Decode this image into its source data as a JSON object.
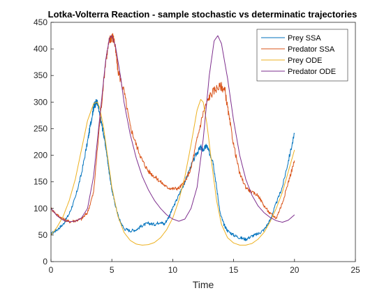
{
  "chart_data": {
    "type": "line",
    "title": "Lotka-Volterra Reaction - sample stochastic vs determinatic trajectories",
    "xlabel": "Time",
    "ylabel": "",
    "xlim": [
      0,
      25
    ],
    "ylim": [
      0,
      450
    ],
    "xticks": [
      0,
      5,
      10,
      15,
      20,
      25
    ],
    "yticks": [
      0,
      50,
      100,
      150,
      200,
      250,
      300,
      350,
      400,
      450
    ],
    "grid": false,
    "legend_position": "top-right",
    "series": [
      {
        "name": "Prey SSA",
        "color": "#0072BD",
        "stochastic": true,
        "points": [
          [
            0,
            52
          ],
          [
            0.5,
            60
          ],
          [
            1,
            70
          ],
          [
            1.5,
            90
          ],
          [
            2,
            120
          ],
          [
            2.5,
            165
          ],
          [
            3,
            225
          ],
          [
            3.3,
            265
          ],
          [
            3.5,
            290
          ],
          [
            3.6,
            296
          ],
          [
            3.8,
            300
          ],
          [
            4,
            275
          ],
          [
            4.2,
            255
          ],
          [
            4.4,
            230
          ],
          [
            4.6,
            200
          ],
          [
            4.8,
            165
          ],
          [
            5,
            135
          ],
          [
            5.3,
            105
          ],
          [
            5.6,
            80
          ],
          [
            6,
            62
          ],
          [
            6.5,
            58
          ],
          [
            7,
            60
          ],
          [
            7.5,
            68
          ],
          [
            8,
            72
          ],
          [
            8.5,
            70
          ],
          [
            9,
            75
          ],
          [
            9.3,
            70
          ],
          [
            9.7,
            85
          ],
          [
            10,
            100
          ],
          [
            10.5,
            125
          ],
          [
            11,
            150
          ],
          [
            11.5,
            180
          ],
          [
            12,
            205
          ],
          [
            12.3,
            215
          ],
          [
            12.5,
            210
          ],
          [
            12.8,
            218
          ],
          [
            13,
            205
          ],
          [
            13.3,
            190
          ],
          [
            13.6,
            140
          ],
          [
            13.9,
            90
          ],
          [
            14.2,
            70
          ],
          [
            14.5,
            58
          ],
          [
            15,
            50
          ],
          [
            15.5,
            45
          ],
          [
            16,
            42
          ],
          [
            16.5,
            48
          ],
          [
            17,
            52
          ],
          [
            17.5,
            60
          ],
          [
            18,
            78
          ],
          [
            18.5,
            110
          ],
          [
            19,
            140
          ],
          [
            19.5,
            190
          ],
          [
            20,
            240
          ]
        ]
      },
      {
        "name": "Predator SSA",
        "color": "#D95319",
        "stochastic": true,
        "points": [
          [
            0,
            100
          ],
          [
            0.5,
            88
          ],
          [
            1,
            80
          ],
          [
            1.5,
            75
          ],
          [
            2,
            77
          ],
          [
            2.5,
            80
          ],
          [
            3,
            92
          ],
          [
            3.5,
            130
          ],
          [
            4,
            260
          ],
          [
            4.5,
            380
          ],
          [
            4.8,
            415
          ],
          [
            5,
            425
          ],
          [
            5.2,
            415
          ],
          [
            5.5,
            360
          ],
          [
            6,
            320
          ],
          [
            6.5,
            255
          ],
          [
            7,
            220
          ],
          [
            7.5,
            190
          ],
          [
            8,
            170
          ],
          [
            8.5,
            160
          ],
          [
            9,
            150
          ],
          [
            9.5,
            140
          ],
          [
            10,
            137
          ],
          [
            10.5,
            138
          ],
          [
            11,
            150
          ],
          [
            11.5,
            175
          ],
          [
            12,
            230
          ],
          [
            12.5,
            280
          ],
          [
            13,
            310
          ],
          [
            13.5,
            325
          ],
          [
            14,
            330
          ],
          [
            14.3,
            320
          ],
          [
            14.6,
            275
          ],
          [
            15,
            220
          ],
          [
            15.5,
            165
          ],
          [
            16,
            140
          ],
          [
            16.5,
            130
          ],
          [
            17,
            125
          ],
          [
            17.5,
            105
          ],
          [
            18,
            90
          ],
          [
            18.5,
            82
          ],
          [
            19,
            110
          ],
          [
            19.5,
            150
          ],
          [
            20,
            190
          ]
        ]
      },
      {
        "name": "Prey ODE",
        "color": "#EDB120",
        "stochastic": false,
        "points": [
          [
            0,
            50
          ],
          [
            0.5,
            65
          ],
          [
            1,
            85
          ],
          [
            1.5,
            115
          ],
          [
            2,
            155
          ],
          [
            2.5,
            210
          ],
          [
            3,
            265
          ],
          [
            3.5,
            297
          ],
          [
            3.8,
            300
          ],
          [
            4,
            290
          ],
          [
            4.3,
            255
          ],
          [
            4.7,
            190
          ],
          [
            5,
            140
          ],
          [
            5.5,
            85
          ],
          [
            6,
            55
          ],
          [
            6.5,
            40
          ],
          [
            7,
            33
          ],
          [
            7.5,
            31
          ],
          [
            8,
            32
          ],
          [
            8.5,
            36
          ],
          [
            9,
            45
          ],
          [
            9.5,
            60
          ],
          [
            10,
            82
          ],
          [
            10.5,
            115
          ],
          [
            11,
            160
          ],
          [
            11.5,
            220
          ],
          [
            12,
            285
          ],
          [
            12.3,
            305
          ],
          [
            12.5,
            300
          ],
          [
            12.8,
            260
          ],
          [
            13.2,
            185
          ],
          [
            13.6,
            115
          ],
          [
            14,
            70
          ],
          [
            14.5,
            45
          ],
          [
            15,
            35
          ],
          [
            15.5,
            31
          ],
          [
            16,
            31
          ],
          [
            16.5,
            34
          ],
          [
            17,
            42
          ],
          [
            17.5,
            55
          ],
          [
            18,
            75
          ],
          [
            18.5,
            100
          ],
          [
            19,
            130
          ],
          [
            19.5,
            170
          ],
          [
            20,
            210
          ]
        ]
      },
      {
        "name": "Predator ODE",
        "color": "#7E2F8E",
        "stochastic": false,
        "points": [
          [
            0,
            100
          ],
          [
            0.5,
            86
          ],
          [
            1,
            78
          ],
          [
            1.5,
            75
          ],
          [
            2,
            76
          ],
          [
            2.5,
            82
          ],
          [
            3,
            100
          ],
          [
            3.5,
            160
          ],
          [
            4,
            270
          ],
          [
            4.5,
            380
          ],
          [
            4.8,
            420
          ],
          [
            5,
            425
          ],
          [
            5.3,
            405
          ],
          [
            5.7,
            350
          ],
          [
            6,
            300
          ],
          [
            6.5,
            240
          ],
          [
            7,
            195
          ],
          [
            7.5,
            160
          ],
          [
            8,
            135
          ],
          [
            8.5,
            115
          ],
          [
            9,
            100
          ],
          [
            9.5,
            88
          ],
          [
            10,
            80
          ],
          [
            10.5,
            76
          ],
          [
            11,
            80
          ],
          [
            11.5,
            100
          ],
          [
            12,
            140
          ],
          [
            12.5,
            230
          ],
          [
            13,
            350
          ],
          [
            13.4,
            415
          ],
          [
            13.7,
            425
          ],
          [
            14,
            410
          ],
          [
            14.5,
            345
          ],
          [
            15,
            265
          ],
          [
            15.5,
            200
          ],
          [
            16,
            155
          ],
          [
            16.5,
            125
          ],
          [
            17,
            105
          ],
          [
            17.5,
            92
          ],
          [
            18,
            83
          ],
          [
            18.5,
            77
          ],
          [
            19,
            74
          ],
          [
            19.5,
            78
          ],
          [
            20,
            88
          ]
        ]
      }
    ]
  }
}
